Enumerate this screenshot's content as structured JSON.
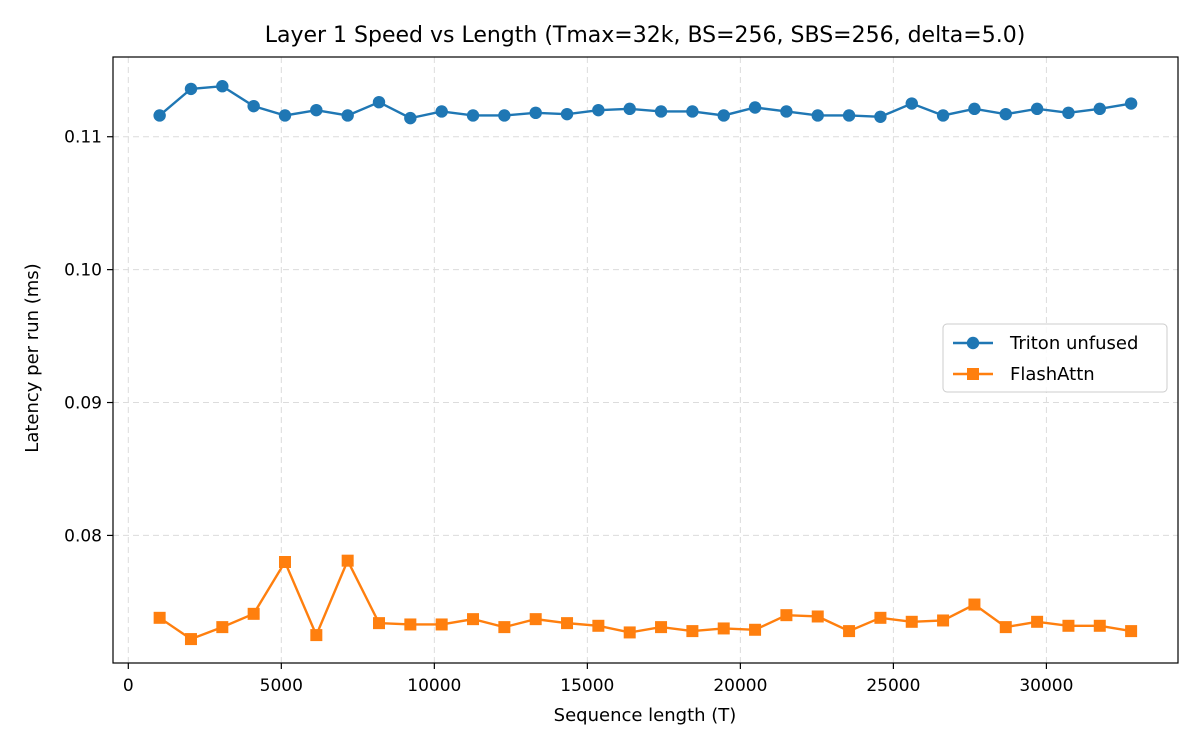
{
  "chart_data": {
    "type": "line",
    "title": "Layer 1 Speed vs Length (Tmax=32k, BS=256, SBS=256, delta=5.0)",
    "xlabel": "Sequence length (T)",
    "ylabel": "Latency per run (ms)",
    "xlim": [
      -500,
      34300
    ],
    "ylim": [
      0.0704,
      0.116
    ],
    "xticks": [
      0,
      5000,
      10000,
      15000,
      20000,
      25000,
      30000
    ],
    "xtick_labels": [
      "0",
      "5000",
      "10000",
      "15000",
      "20000",
      "25000",
      "30000"
    ],
    "yticks": [
      0.08,
      0.09,
      0.1,
      0.11
    ],
    "ytick_labels": [
      "0.08",
      "0.09",
      "0.10",
      "0.11"
    ],
    "grid": true,
    "legend_position": "center-right",
    "x": [
      1024,
      2048,
      3072,
      4096,
      5120,
      6144,
      7168,
      8192,
      9216,
      10240,
      11264,
      12288,
      13312,
      14336,
      15360,
      16384,
      17408,
      18432,
      19456,
      20480,
      21504,
      22528,
      23552,
      24576,
      25600,
      26624,
      27648,
      28672,
      29696,
      30720,
      31744,
      32768
    ],
    "series": [
      {
        "name": "Triton unfused",
        "color": "#1f77b4",
        "marker": "circle",
        "values": [
          0.1116,
          0.1136,
          0.1138,
          0.1123,
          0.1116,
          0.112,
          0.1116,
          0.1126,
          0.1114,
          0.1119,
          0.1116,
          0.1116,
          0.1118,
          0.1117,
          0.112,
          0.1121,
          0.1119,
          0.1119,
          0.1116,
          0.1122,
          0.1119,
          0.1116,
          0.1116,
          0.1115,
          0.1125,
          0.1116,
          0.1121,
          0.1117,
          0.1121,
          0.1118,
          0.1121,
          0.1125
        ]
      },
      {
        "name": "FlashAttn",
        "color": "#ff7f0e",
        "marker": "square",
        "values": [
          0.0738,
          0.0722,
          0.0731,
          0.0741,
          0.078,
          0.0725,
          0.0781,
          0.0734,
          0.0733,
          0.0733,
          0.0737,
          0.0731,
          0.0737,
          0.0734,
          0.0732,
          0.0727,
          0.0731,
          0.0728,
          0.073,
          0.0729,
          0.074,
          0.0739,
          0.0728,
          0.0738,
          0.0735,
          0.0736,
          0.0748,
          0.0731,
          0.0735,
          0.0732,
          0.0732,
          0.0728
        ]
      }
    ]
  }
}
